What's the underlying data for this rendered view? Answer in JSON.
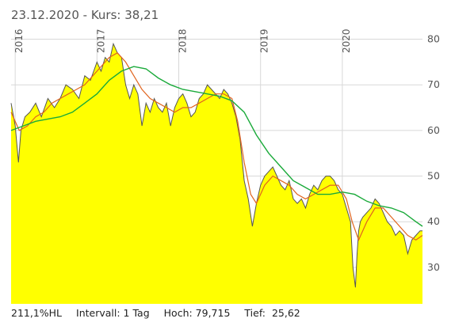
{
  "header": {
    "date": "23.12.2020",
    "price_label": " - Kurs: 38,21"
  },
  "footer": {
    "hl": "211,1%HL",
    "interval": "Intervall: 1 Tag",
    "high": "Hoch: 79,715",
    "low": "Tief:  25,62"
  },
  "colors": {
    "area_fill": "#ffff00",
    "price_line": "#555555",
    "ma_short": "#e0641e",
    "ma_long": "#1aaa3a",
    "grid": "#d8d8d8",
    "axis_text": "#555555"
  },
  "chart_data": {
    "type": "area",
    "title": "",
    "ylim": [
      22,
      82
    ],
    "yticks": [
      30,
      40,
      50,
      60,
      70,
      80
    ],
    "xlim": [
      2015.95,
      2020.98
    ],
    "xticks": [
      {
        "label": "2016",
        "x": 2016.0
      },
      {
        "label": "2017",
        "x": 2017.0
      },
      {
        "label": "2018",
        "x": 2018.0
      },
      {
        "label": "2019",
        "x": 2019.0
      },
      {
        "label": "2020",
        "x": 2020.0
      }
    ],
    "grid": true,
    "series": [
      {
        "key": "price",
        "x": [
          2015.95,
          2016.0,
          2016.04,
          2016.07,
          2016.12,
          2016.18,
          2016.25,
          2016.32,
          2016.4,
          2016.48,
          2016.55,
          2016.62,
          2016.7,
          2016.78,
          2016.85,
          2016.92,
          2017.0,
          2017.05,
          2017.1,
          2017.15,
          2017.2,
          2017.25,
          2017.3,
          2017.35,
          2017.4,
          2017.45,
          2017.5,
          2017.55,
          2017.6,
          2017.65,
          2017.7,
          2017.75,
          2017.8,
          2017.85,
          2017.9,
          2017.95,
          2018.0,
          2018.05,
          2018.1,
          2018.15,
          2018.2,
          2018.25,
          2018.3,
          2018.35,
          2018.4,
          2018.45,
          2018.5,
          2018.55,
          2018.6,
          2018.65,
          2018.7,
          2018.75,
          2018.8,
          2018.85,
          2018.9,
          2018.95,
          2019.0,
          2019.05,
          2019.1,
          2019.15,
          2019.2,
          2019.25,
          2019.3,
          2019.35,
          2019.4,
          2019.45,
          2019.5,
          2019.55,
          2019.6,
          2019.65,
          2019.7,
          2019.75,
          2019.8,
          2019.85,
          2019.9,
          2019.95,
          2020.0,
          2020.05,
          2020.1,
          2020.13,
          2020.16,
          2020.18,
          2020.2,
          2020.22,
          2020.25,
          2020.3,
          2020.35,
          2020.4,
          2020.45,
          2020.5,
          2020.55,
          2020.6,
          2020.65,
          2020.7,
          2020.75,
          2020.8,
          2020.85,
          2020.9,
          2020.95,
          2020.98
        ],
        "y": [
          66,
          61,
          53,
          60,
          63,
          64,
          66,
          63,
          67,
          65,
          67,
          70,
          69,
          67,
          72,
          71,
          75,
          73,
          76,
          75,
          79,
          77,
          76,
          70,
          67,
          70,
          68,
          61,
          66,
          64,
          67,
          65,
          64,
          66,
          61,
          65,
          67,
          68,
          66,
          63,
          64,
          67,
          68,
          70,
          69,
          68,
          67,
          69,
          68,
          66,
          63,
          58,
          49,
          45,
          39,
          44,
          48,
          50,
          51,
          52,
          50,
          48,
          47,
          49,
          45,
          44,
          45,
          43,
          46,
          48,
          47,
          49,
          50,
          50,
          49,
          47,
          46,
          43,
          40,
          30,
          25.6,
          33,
          38,
          40,
          41,
          42,
          43,
          45,
          44,
          42,
          40,
          39,
          37,
          38,
          37,
          33,
          36,
          37,
          38,
          38
        ]
      },
      {
        "key": "ma_short",
        "x": [
          2015.95,
          2016.05,
          2016.15,
          2016.25,
          2016.35,
          2016.45,
          2016.55,
          2016.65,
          2016.75,
          2016.85,
          2016.95,
          2017.05,
          2017.15,
          2017.25,
          2017.35,
          2017.45,
          2017.55,
          2017.65,
          2017.75,
          2017.85,
          2017.95,
          2018.05,
          2018.15,
          2018.25,
          2018.35,
          2018.45,
          2018.55,
          2018.65,
          2018.72,
          2018.8,
          2018.88,
          2018.95,
          2019.05,
          2019.15,
          2019.25,
          2019.35,
          2019.45,
          2019.55,
          2019.65,
          2019.75,
          2019.85,
          2019.95,
          2020.05,
          2020.12,
          2020.2,
          2020.3,
          2020.4,
          2020.5,
          2020.6,
          2020.7,
          2020.8,
          2020.9,
          2020.98
        ],
        "y": [
          64,
          60,
          61,
          63,
          64,
          66,
          67,
          68,
          69,
          70,
          72,
          74,
          76,
          77,
          75,
          72,
          69,
          67,
          66,
          65,
          64,
          65,
          65,
          66,
          67,
          68,
          68,
          67,
          62,
          53,
          46,
          44,
          48,
          50,
          49,
          48,
          46,
          45,
          46,
          47,
          48,
          48,
          45,
          40,
          36,
          40,
          43,
          43,
          41,
          39,
          37,
          36,
          37
        ]
      },
      {
        "key": "ma_long",
        "x": [
          2015.95,
          2016.1,
          2016.25,
          2016.4,
          2016.55,
          2016.7,
          2016.85,
          2017.0,
          2017.15,
          2017.3,
          2017.45,
          2017.6,
          2017.75,
          2017.9,
          2018.05,
          2018.2,
          2018.35,
          2018.5,
          2018.65,
          2018.8,
          2018.95,
          2019.1,
          2019.25,
          2019.4,
          2019.55,
          2019.7,
          2019.85,
          2020.0,
          2020.15,
          2020.3,
          2020.45,
          2020.6,
          2020.75,
          2020.9,
          2020.98
        ],
        "y": [
          60,
          61,
          62,
          62.5,
          63,
          64,
          66,
          68,
          71,
          73,
          74,
          73.5,
          71.5,
          70,
          69,
          68.5,
          68,
          67.5,
          66.5,
          64,
          59,
          55,
          52,
          49,
          47.5,
          46,
          46,
          46.5,
          46,
          44.5,
          43.5,
          43,
          42,
          40,
          39
        ]
      }
    ]
  }
}
